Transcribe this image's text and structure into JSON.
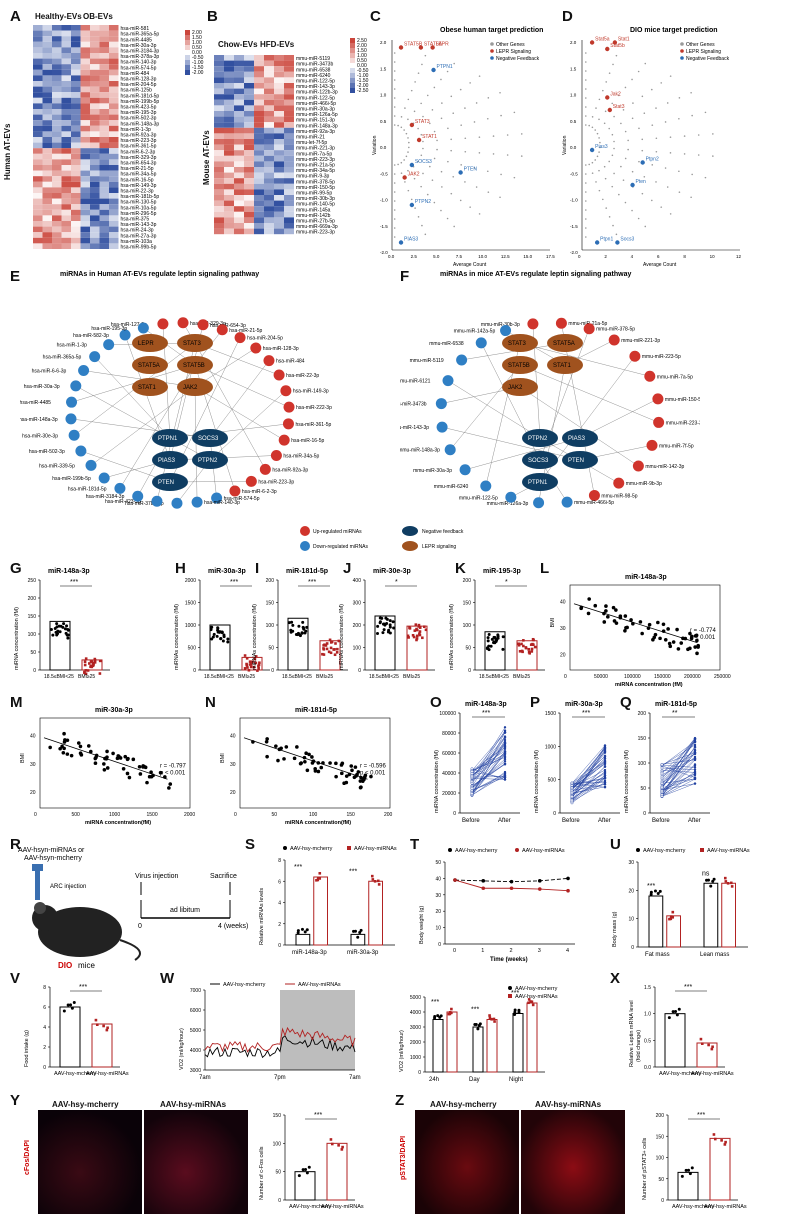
{
  "labels": {
    "A": "A",
    "B": "B",
    "C": "C",
    "D": "D",
    "E": "E",
    "F": "F",
    "G": "G",
    "H": "H",
    "I": "I",
    "J": "J",
    "K": "K",
    "L": "L",
    "M": "M",
    "N": "N",
    "O": "O",
    "P": "P",
    "Q": "Q",
    "R": "R",
    "S": "S",
    "T": "T",
    "U": "U",
    "V": "V",
    "W": "W",
    "X": "X",
    "Y": "Y",
    "Z": "Z"
  },
  "panelA": {
    "group1": "Healthy-EVs",
    "group2": "OB-EVs",
    "ylabel": "Human AT-EVs",
    "colorbar": [
      "2.00",
      "1.50",
      "1.00",
      "0.50",
      "0.00",
      "-0.50",
      "-1.00",
      "-1.50",
      "-2.00"
    ],
    "rows": [
      "hsa-miR-581",
      "hsa-miR-365a-5p",
      "hsa-miR-4485",
      "hsa-miR-30a-3p",
      "hsa-miR-3184-3p",
      "hsa-miR-378a-3p",
      "hsa-miR-140-3p",
      "hsa-miR-574-5p",
      "hsa-miR-484",
      "hsa-miR-128-3p",
      "hsa-miR-204-5p",
      "hsa-miR-125b",
      "hsa-miR-181d-5p",
      "hsa-miR-199b-5p",
      "hsa-miR-423-5p",
      "hsa-miR-195-3p",
      "hsa-miR-502-3p",
      "hsa-miR-148a-3p",
      "hsa-miR-1-3p",
      "hsa-miR-92a-3p",
      "hsa-miR-223-3p",
      "hsa-miR-361-5p",
      "hsa-miR-6-2-3p",
      "hsa-miR-329-3p",
      "hsa-miR-654-3p",
      "hsa-miR-21-5p",
      "hsa-miR-34a-5p",
      "hsa-miR-16-5p",
      "hsa-miR-149-3p",
      "hsa-miR-22-3p",
      "hsa-miR-181b-5p",
      "hsa-miR-130-5p",
      "hsa-miR-10a-5p",
      "hsa-miR-296-5p",
      "hsa-miR-375",
      "hsa-miR-143-3p",
      "hsa-miR-24-3p",
      "hsa-miR-27a-3p",
      "hsa-miR-103a",
      "hsa-miR-99b-5p"
    ]
  },
  "panelB": {
    "group1": "Chow-EVs",
    "group2": "HFD-EVs",
    "ylabel": "Mouse AT-EVs",
    "colorbar": [
      "2.50",
      "2.00",
      "1.50",
      "1.00",
      "0.50",
      "0.00",
      "-0.50",
      "-1.00",
      "-1.50",
      "-2.00",
      "-2.50"
    ],
    "rows": [
      "mmu-miR-5119",
      "mmu-miR-3473b",
      "mmu-miR-6538",
      "mmu-miR-6240",
      "mmu-miR-122-5p",
      "mmu-miR-143-3p",
      "mmu-miR-122b-3p",
      "mmu-miR-122-5p",
      "mmu-miR-466i-5p",
      "mmu-miR-30a-3p",
      "mmu-miR-126a-5p",
      "mmu-miR-151-3p",
      "mmu-miR-148a-3p",
      "mmu-miR-92a-3p",
      "mmu-miR-21",
      "mmu-let-7f-5p",
      "mmu-miR-221-3p",
      "mmu-miR-7a-5p",
      "mmu-miR-223-3p",
      "mmu-miR-21a-5p",
      "mmu-miR-34a-5p",
      "mmu-miR-9-3p",
      "mmu-miR-378-5p",
      "mmu-miR-150-5p",
      "mmu-miR-99-5p",
      "mmu-miR-30b-3p",
      "mmu-miR-140-5p",
      "mmu-miR-145a",
      "mmu-miR-142b",
      "mmu-miR-27b-5p",
      "mmu-miR-669a-3p",
      "mmu-miR-223-3p"
    ]
  },
  "panelC": {
    "title": "Obese human target prediction",
    "xlabel": "Average Count",
    "ylabel": "Variation",
    "legend": [
      "Other Genes",
      "LEPR Signaling",
      "Negative Feedback"
    ],
    "points": [
      {
        "n": "STAT5B",
        "x": 1.0,
        "y": 1.95,
        "c": "red"
      },
      {
        "n": "STAT5A",
        "x": 3.2,
        "y": 1.95,
        "c": "red"
      },
      {
        "n": "LEPR",
        "x": 4.5,
        "y": 1.95,
        "c": "red"
      },
      {
        "n": "PTPN1",
        "x": 4.6,
        "y": 1.5,
        "c": "blue"
      },
      {
        "n": "STAT3",
        "x": 2.2,
        "y": 0.4,
        "c": "red"
      },
      {
        "n": "STAT1",
        "x": 3.0,
        "y": 0.1,
        "c": "red"
      },
      {
        "n": "SOCS3",
        "x": 2.2,
        "y": -0.4,
        "c": "blue"
      },
      {
        "n": "JAK2",
        "x": 1.4,
        "y": -0.65,
        "c": "red"
      },
      {
        "n": "PTEN",
        "x": 7.6,
        "y": -0.55,
        "c": "blue"
      },
      {
        "n": "PTPN2",
        "x": 2.2,
        "y": -1.2,
        "c": "blue"
      },
      {
        "n": "PIAS3",
        "x": 1.0,
        "y": -1.95,
        "c": "blue"
      }
    ],
    "xticks": [
      "0.0",
      "2.5",
      "5.0",
      "7.5",
      "10.0",
      "12.5",
      "15.0",
      "17.5"
    ],
    "yticks": [
      "2.0",
      "1.5",
      "1.0",
      "0.5",
      "0.0",
      "-0.5",
      "-1.0",
      "-1.5",
      "-2.0"
    ]
  },
  "panelD": {
    "title": "DIO mice target prediction",
    "xlabel": "Average Count",
    "ylabel": "Variation",
    "legend": [
      "Other Genes",
      "LEPR Signaling",
      "Negative Feedback"
    ],
    "points": [
      {
        "n": "Stat5a",
        "x": 0.8,
        "y": 2.05,
        "c": "red"
      },
      {
        "n": "Stat1",
        "x": 2.6,
        "y": 2.05,
        "c": "red"
      },
      {
        "n": "Stat5b",
        "x": 2.0,
        "y": 1.92,
        "c": "red"
      },
      {
        "n": "Jak2",
        "x": 2.0,
        "y": 0.95,
        "c": "red"
      },
      {
        "n": "Stat3",
        "x": 2.2,
        "y": 0.7,
        "c": "red"
      },
      {
        "n": "Pias3",
        "x": 0.8,
        "y": -0.1,
        "c": "blue"
      },
      {
        "n": "Ptpn2",
        "x": 4.8,
        "y": -0.35,
        "c": "blue"
      },
      {
        "n": "Pten",
        "x": 4.0,
        "y": -0.8,
        "c": "blue"
      },
      {
        "n": "Ptpn1",
        "x": 1.2,
        "y": -1.95,
        "c": "blue"
      },
      {
        "n": "Socs3",
        "x": 2.8,
        "y": -1.95,
        "c": "blue"
      }
    ],
    "xticks": [
      "0",
      "2",
      "4",
      "6",
      "8",
      "10",
      "12"
    ],
    "yticks": [
      "2.0",
      "1.5",
      "1.0",
      "0.5",
      "0.0",
      "-0.5",
      "-1.0",
      "-1.5",
      "-2.0"
    ]
  },
  "panelE": {
    "title": "miRNAs in Human AT-EVs regulate leptin signaling pathway",
    "red_genes": [
      "LEPR",
      "STAT3",
      "STAT5A",
      "STAT5B",
      "STAT1",
      "JAK2"
    ],
    "blue_genes": [
      "PTPN1",
      "SOCS3",
      "PIAS3",
      "PTPN2",
      "PTEN"
    ],
    "up": [
      "hsa-miR-127-3p",
      "hsa-miR-329-3p",
      "hsa-miR-654-3p",
      "hsa-miR-21-5p",
      "hsa-miR-204-5p",
      "hsa-miR-128-3p",
      "hsa-miR-484",
      "hsa-miR-22-3p",
      "hsa-miR-149-3p",
      "hsa-miR-222-3p",
      "hsa-miR-361-5p",
      "hsa-miR-16-5p",
      "hsa-miR-34a-5p",
      "hsa-miR-92a-3p",
      "hsa-miR-223-3p",
      "hsa-miR-6-2-3p"
    ],
    "down": [
      "hsa-miR-574-5p",
      "hsa-miR-140-3p",
      "hsa-miR-378a-3p",
      "hsa-miR-423-5p",
      "hsa-miR-3184-3p",
      "hsa-miR-181d-5p",
      "hsa-miR-199b-5p",
      "hsa-miR-339-5p",
      "hsa-miR-502-3p",
      "hsa-miR-30e-3p",
      "hsa-miR-148a-3p",
      "hsa-miR-4485",
      "hsa-miR-30a-3p",
      "hsa-miR-6-6-3p",
      "hsa-miR-365a-5p",
      "hsa-miR-1-3p",
      "hsa-miR-582-3p",
      "hsa-miR-195-3p"
    ],
    "legend": [
      "Up-regulated miRNAs",
      "Down-regulated miRNAs",
      "Negative feedback",
      "LEPR signaling"
    ]
  },
  "panelF": {
    "title": "miRNAs in mice AT-EVs regulate leptin signaling pathway",
    "red_genes": [
      "STAT3",
      "STAT5A",
      "STAT5B",
      "STAT1",
      "JAK2"
    ],
    "blue_genes": [
      "PTPN2",
      "PIAS3",
      "SOCS3",
      "PTEN",
      "PTPN1"
    ],
    "up": [
      "mmu-miR-30b-3p",
      "mmu-miR-21a-5p",
      "mmu-miR-378-5p",
      "mmu-miR-221-3p",
      "mmu-miR-223-5p",
      "mmu-miR-7a-5p",
      "mmu-miR-150-5p",
      "mmu-miR-223-3p",
      "mmu-miR-7f-5p",
      "mmu-miR-142-3p",
      "mmu-miR-9b-3p",
      "mmu-miR-98-5p"
    ],
    "down": [
      "mmu-miR-466i-5p",
      "mmu-miR-126a-3p",
      "mmu-miR-122-5p",
      "mmu-miR-6240",
      "mmu-miR-30a-3p",
      "mmu-miR-148a-3p",
      "mmu-miR-143-3p",
      "mmu-miR-3473b",
      "mmu-miR-6121",
      "mmu-miR-5119",
      "mmu-miR-6538",
      "mmu-miR-142a-5p"
    ]
  },
  "barsHuman": [
    {
      "label": "G",
      "title": "miR-148a-3p",
      "ylabel": "miRNA concentration (fM)",
      "ymax": 250,
      "yticks": [
        "0",
        "50",
        "100",
        "150",
        "200",
        "250"
      ],
      "g1": "18.5≤BMI<25",
      "g2": "BMI≥25",
      "m1": 135,
      "m2": 28,
      "sig": "***"
    },
    {
      "label": "H",
      "title": "miR-30a-3p",
      "ylabel": "miRNAs concentration (fM)",
      "ymax": 2000,
      "yticks": [
        "0",
        "500",
        "1000",
        "1500",
        "2000"
      ],
      "g1": "18.5≤BMI<25",
      "g2": "BMI≥25",
      "m1": 1000,
      "m2": 280,
      "sig": "***"
    },
    {
      "label": "I",
      "title": "miR-181d-5p",
      "ylabel": "miRNAs concentration (fM)",
      "ymax": 200,
      "yticks": [
        "0",
        "50",
        "100",
        "150",
        "200"
      ],
      "g1": "18.5≤BMI<25",
      "g2": "BMI≥25",
      "m1": 115,
      "m2": 65,
      "sig": "***"
    },
    {
      "label": "J",
      "title": "miR-30e-3p",
      "ylabel": "miRNAs concentration (fM)",
      "ymax": 400,
      "yticks": [
        "0",
        "100",
        "200",
        "300",
        "400"
      ],
      "g1": "18.5≤BMI<25",
      "g2": "BMI≥25",
      "m1": 240,
      "m2": 195,
      "sig": "*"
    },
    {
      "label": "K",
      "title": "miR-195-3p",
      "ylabel": "miRNAs concentration (fM)",
      "ymax": 200,
      "yticks": [
        "0",
        "50",
        "100",
        "150",
        "200"
      ],
      "g1": "18.5≤BMI<25",
      "g2": "BMI≥25",
      "m1": 85,
      "m2": 65,
      "sig": "*"
    }
  ],
  "scatter": [
    {
      "label": "L",
      "title": "miR-148a-3p",
      "xlabel": "miRNA concentration (fM)",
      "ylabel": "BMI",
      "r": "r = -0.774",
      "p": "p < 0.001",
      "xmax": 250000,
      "ymin": 15,
      "ymax": 45,
      "xticks": [
        "0",
        "50000",
        "100000",
        "150000",
        "200000",
        "250000"
      ],
      "yticks": [
        "20",
        "30",
        "40"
      ]
    },
    {
      "label": "M",
      "title": "miR-30a-3p",
      "xlabel": "miRNA concentration(fM)",
      "ylabel": "BMI",
      "r": "r = -0.797",
      "p": "p < 0.001",
      "xmax": 2000,
      "ymin": 15,
      "ymax": 45,
      "xticks": [
        "0",
        "500",
        "1000",
        "1500",
        "2000"
      ],
      "yticks": [
        "20",
        "30",
        "40"
      ]
    },
    {
      "label": "N",
      "title": "miR-181d-5p",
      "xlabel": "miRNA concentration(fM)",
      "ylabel": "BMI",
      "r": "r = -0.596",
      "p": "p < 0.001",
      "xmax": 200,
      "ymin": 15,
      "ymax": 45,
      "xticks": [
        "0",
        "50",
        "100",
        "150",
        "200"
      ],
      "yticks": [
        "20",
        "30",
        "40"
      ]
    }
  ],
  "paired": [
    {
      "label": "O",
      "title": "miR-148a-3p",
      "ylabel": "miRNA concentration (fM)",
      "ymax": 100000,
      "yticks": [
        "0",
        "20000",
        "40000",
        "60000",
        "80000",
        "100000"
      ],
      "x1": "Before",
      "x2": "After",
      "b": 30000,
      "a": 60000,
      "sig": "***"
    },
    {
      "label": "P",
      "title": "miR-30a-3p",
      "ylabel": "miRNA concentration (fM)",
      "ymax": 1500,
      "yticks": [
        "0",
        "500",
        "1000",
        "1500"
      ],
      "x1": "Before",
      "x2": "After",
      "b": 300,
      "a": 700,
      "sig": "***"
    },
    {
      "label": "Q",
      "title": "miR-181d-5p",
      "ylabel": "miRNA concentration (fM)",
      "ymax": 200,
      "yticks": [
        "0",
        "50",
        "100",
        "150",
        "200"
      ],
      "x1": "Before",
      "x2": "After",
      "b": 65,
      "a": 105,
      "sig": "**"
    }
  ],
  "panelR": {
    "virus1": "AAV-hsyn-miRNAs or",
    "virus2": "AAV-hsyn-mcherry",
    "injection": "ARC injection",
    "vi": "Virus injection",
    "sac": "Sacrifice",
    "adlib": "ad libitum",
    "t0": "0",
    "t4": "4 (weeks)",
    "dio": "DIO",
    "mice": "mice"
  },
  "panelS": {
    "legend": [
      "AAV-hsy-mcherry",
      "AAV-hsy-miRNAs"
    ],
    "ylabel": "Relative miRNAs levels",
    "cats": [
      "miR-148a-3p",
      "miR-30a-3p"
    ],
    "ctrl": [
      1,
      1
    ],
    "trt": [
      6.4,
      6.0
    ],
    "ymax": 8,
    "yticks": [
      "0",
      "2",
      "4",
      "6",
      "8"
    ],
    "sig": [
      "***",
      "***"
    ]
  },
  "panelT": {
    "legend": [
      "AAV-hsy-mcherry",
      "AAV-hsy-miRNAs"
    ],
    "ylabel": "Body weight (g)",
    "xlabel": "Time (weeks)",
    "x": [
      0,
      1,
      2,
      3,
      4
    ],
    "ctrl": [
      39,
      38.5,
      38,
      38.5,
      40
    ],
    "trt": [
      39,
      34,
      34,
      33.5,
      32.5
    ],
    "ymin": 0,
    "ymax": 50,
    "yticks": [
      "0",
      "10",
      "20",
      "30",
      "40",
      "50"
    ]
  },
  "panelU": {
    "legend": [
      "AAV-hsy-mcherry",
      "AAV-hsy-miRNAs"
    ],
    "ylabel": "Body mass (g)",
    "cats": [
      "Fat mass",
      "Lean mass"
    ],
    "ctrl": [
      18,
      22.5
    ],
    "trt": [
      11,
      22.5
    ],
    "ymax": 30,
    "yticks": [
      "0",
      "10",
      "20",
      "30"
    ],
    "sig": [
      "***",
      "ns"
    ]
  },
  "panelV": {
    "ylabel": "Food intake (g)",
    "cats": [
      "AAV-hsy-mcherry",
      "AAV-hsy-miRNAs"
    ],
    "vals": [
      6,
      4.3
    ],
    "ymax": 8,
    "yticks": [
      "0",
      "2",
      "4",
      "6",
      "8"
    ],
    "sig": "***"
  },
  "panelW": {
    "legend": [
      "AAV-hsy-mcherry",
      "AAV-hsy-miRNAs"
    ],
    "ylabel": "VO2 (ml/kg/hour)",
    "xticks": [
      "7am",
      "7pm",
      "7am"
    ],
    "yticks": [
      "3000",
      "4000",
      "5000",
      "6000",
      "7000"
    ],
    "bar_legend": [
      "AAV-hsy-mcherry",
      "AAV-hsy-miRNAs"
    ],
    "bar_ylabel": "VO2 (ml/kg/hour)",
    "bar_cats": [
      "24h",
      "Day",
      "Night"
    ],
    "bar_ctrl": [
      3500,
      3000,
      3900
    ],
    "bar_trt": [
      4000,
      3500,
      4600
    ],
    "bar_ymax": 5000,
    "bar_yticks": [
      "0",
      "1000",
      "2000",
      "3000",
      "4000",
      "5000"
    ],
    "bar_sig": [
      "***",
      "***",
      "***"
    ]
  },
  "panelX": {
    "ylabel1": "Relative Leptin mRNA level",
    "ylabel2": "(fold change)",
    "cats": [
      "AAV-hsy-mcherry",
      "AAV-hsy-miRNAs"
    ],
    "vals": [
      1.0,
      0.45
    ],
    "ymax": 1.5,
    "yticks": [
      "0.0",
      "0.5",
      "1.0",
      "1.5"
    ],
    "sig": "***"
  },
  "panelY": {
    "img1": "AAV-hsy-mcherry",
    "img2": "AAV-hsy-miRNAs",
    "stain": "cFos/DAPI",
    "ylabel": "Number of c-Fos cells",
    "cats": [
      "AAV-hsy-mcherry",
      "AAV-hsy-miRNAs"
    ],
    "vals": [
      50,
      100
    ],
    "ymax": 150,
    "yticks": [
      "0",
      "50",
      "100",
      "150"
    ],
    "sig": "***"
  },
  "panelZ": {
    "img1": "AAV-hsy-mcherry",
    "img2": "AAV-hsy-miRNAs",
    "stain": "pSTAT3/DAPI",
    "ylabel": "Number of pSTAT3+ cells",
    "cats": [
      "AAV-hsy-mcherry",
      "AAV-hsy-miRNAs"
    ],
    "vals": [
      65,
      145
    ],
    "ymax": 200,
    "yticks": [
      "0",
      "50",
      "100",
      "150",
      "200"
    ],
    "sig": "***"
  },
  "chart_data": [
    {
      "type": "bar",
      "title": "miR-148a-3p",
      "categories": [
        "18.5≤BMI<25",
        "BMI≥25"
      ],
      "values": [
        135,
        28
      ],
      "ylabel": "miRNA concentration (fM)",
      "ylim": [
        0,
        250
      ]
    },
    {
      "type": "bar",
      "title": "miR-30a-3p",
      "categories": [
        "18.5≤BMI<25",
        "BMI≥25"
      ],
      "values": [
        1000,
        280
      ],
      "ylim": [
        0,
        2000
      ]
    },
    {
      "type": "bar",
      "title": "miR-181d-5p",
      "categories": [
        "18.5≤BMI<25",
        "BMI≥25"
      ],
      "values": [
        115,
        65
      ],
      "ylim": [
        0,
        200
      ]
    },
    {
      "type": "bar",
      "title": "miR-30e-3p",
      "categories": [
        "18.5≤BMI<25",
        "BMI≥25"
      ],
      "values": [
        240,
        195
      ],
      "ylim": [
        0,
        400
      ]
    },
    {
      "type": "bar",
      "title": "miR-195-3p",
      "categories": [
        "18.5≤BMI<25",
        "BMI≥25"
      ],
      "values": [
        85,
        65
      ],
      "ylim": [
        0,
        200
      ]
    },
    {
      "type": "line",
      "title": "Body weight",
      "x": [
        0,
        1,
        2,
        3,
        4
      ],
      "series": [
        {
          "name": "AAV-hsy-mcherry",
          "values": [
            39,
            38.5,
            38,
            38.5,
            40
          ]
        },
        {
          "name": "AAV-hsy-miRNAs",
          "values": [
            39,
            34,
            34,
            33.5,
            32.5
          ]
        }
      ],
      "xlabel": "Time (weeks)",
      "ylabel": "Body weight (g)",
      "ylim": [
        0,
        50
      ]
    },
    {
      "type": "bar",
      "title": "Body mass",
      "categories": [
        "Fat mass",
        "Lean mass"
      ],
      "series": [
        {
          "name": "AAV-hsy-mcherry",
          "values": [
            18,
            22.5
          ]
        },
        {
          "name": "AAV-hsy-miRNAs",
          "values": [
            11,
            22.5
          ]
        }
      ],
      "ylim": [
        0,
        30
      ]
    },
    {
      "type": "bar",
      "title": "Food intake",
      "categories": [
        "AAV-hsy-mcherry",
        "AAV-hsy-miRNAs"
      ],
      "values": [
        6,
        4.3
      ],
      "ylim": [
        0,
        8
      ]
    },
    {
      "type": "bar",
      "title": "VO2",
      "categories": [
        "24h",
        "Day",
        "Night"
      ],
      "series": [
        {
          "name": "AAV-hsy-mcherry",
          "values": [
            3500,
            3000,
            3900
          ]
        },
        {
          "name": "AAV-hsy-miRNAs",
          "values": [
            4000,
            3500,
            4600
          ]
        }
      ],
      "ylim": [
        0,
        5000
      ]
    },
    {
      "type": "bar",
      "title": "Relative Leptin mRNA level",
      "categories": [
        "AAV-hsy-mcherry",
        "AAV-hsy-miRNAs"
      ],
      "values": [
        1.0,
        0.45
      ],
      "ylim": [
        0,
        1.5
      ]
    },
    {
      "type": "bar",
      "title": "Number of c-Fos cells",
      "categories": [
        "AAV-hsy-mcherry",
        "AAV-hsy-miRNAs"
      ],
      "values": [
        50,
        100
      ],
      "ylim": [
        0,
        150
      ]
    },
    {
      "type": "bar",
      "title": "Number of pSTAT3+ cells",
      "categories": [
        "AAV-hsy-mcherry",
        "AAV-hsy-miRNAs"
      ],
      "values": [
        65,
        145
      ],
      "ylim": [
        0,
        200
      ]
    }
  ]
}
